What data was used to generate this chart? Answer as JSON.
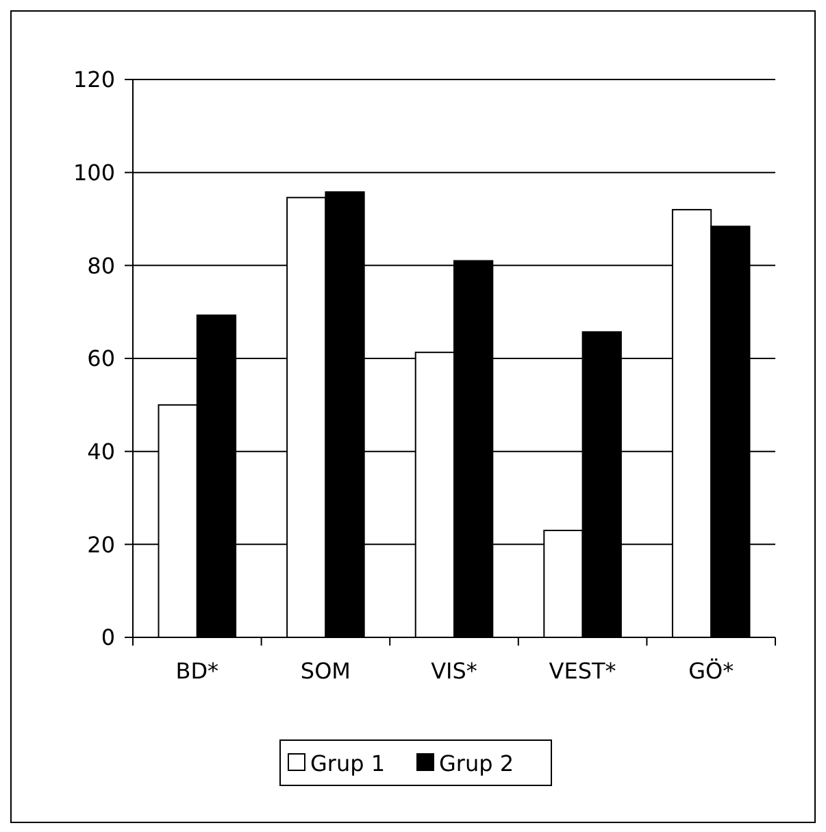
{
  "chart_data": {
    "type": "bar",
    "categories": [
      "BD*",
      "SOM",
      "VIS*",
      "VEST*",
      "GÖ*"
    ],
    "series": [
      {
        "name": "Grup 1",
        "color": "#ffffff",
        "values": [
          50,
          94.6,
          61.3,
          23,
          92
        ]
      },
      {
        "name": "Grup 2",
        "color": "#000000",
        "values": [
          69.3,
          95.8,
          81,
          65.7,
          88.4
        ]
      }
    ],
    "ylim": [
      0,
      120
    ],
    "yticks": [
      0,
      20,
      40,
      60,
      80,
      100,
      120
    ],
    "grid": "y",
    "legend": "bottom"
  }
}
